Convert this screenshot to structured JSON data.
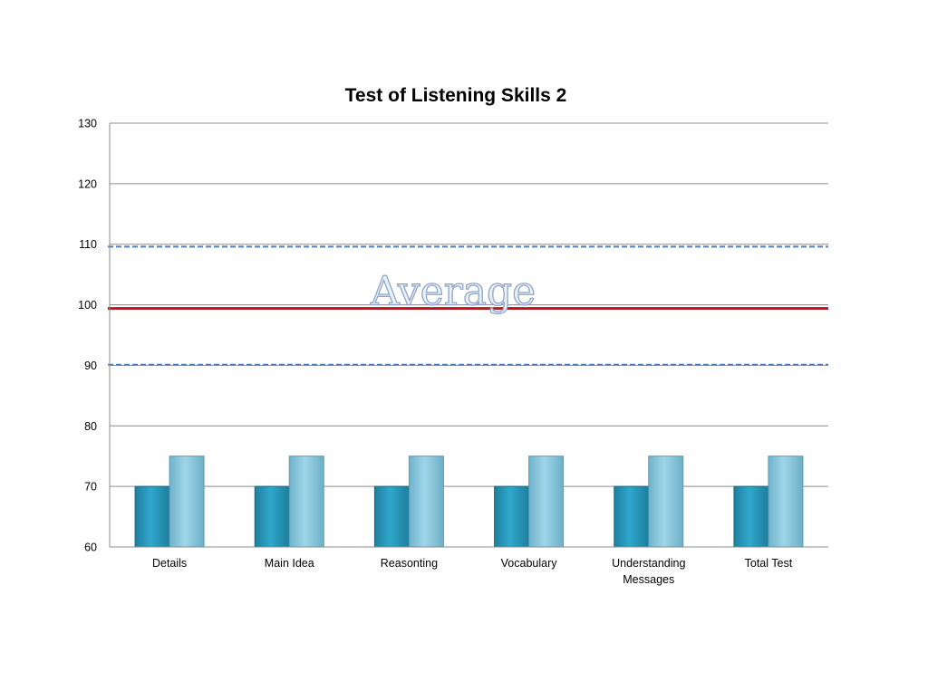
{
  "chart_data": {
    "type": "bar",
    "title": "Test of Listening Skills 2",
    "xlabel": "",
    "ylabel": "",
    "categories": [
      "Details",
      "Main Idea",
      "Reasonting",
      "Vocabulary",
      "Understanding Messages",
      "Total Test"
    ],
    "category_lines": [
      [
        "Details"
      ],
      [
        "Main Idea"
      ],
      [
        "Reasonting"
      ],
      [
        "Vocabulary"
      ],
      [
        "Understanding",
        "Messages"
      ],
      [
        "Total Test"
      ]
    ],
    "series": [
      {
        "values": [
          70,
          70,
          70,
          70,
          70,
          70
        ],
        "color": "#2b9fc1"
      },
      {
        "values": [
          75,
          75,
          75,
          75,
          75,
          75
        ],
        "color": "#86c6dc"
      }
    ],
    "ylim": [
      60,
      130
    ],
    "yticks": [
      60,
      70,
      80,
      90,
      100,
      110,
      120,
      130
    ],
    "grid": true,
    "legend": "none",
    "reference_lines": [
      {
        "value": 99.4,
        "style": "solid",
        "color": "#c0101c"
      },
      {
        "value": 109.6,
        "style": "dashed",
        "color": "#4a7ec0"
      },
      {
        "value": 90.1,
        "style": "dashed",
        "color": "#4a7ec0"
      }
    ],
    "annotations": [
      {
        "text": "Average",
        "y": 99.4
      }
    ]
  }
}
